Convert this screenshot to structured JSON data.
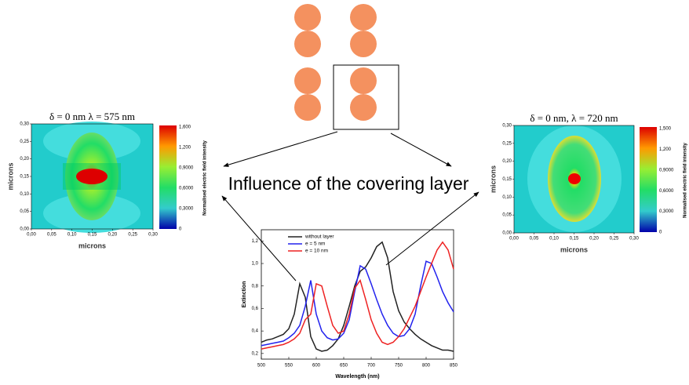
{
  "heading": "Influence of the covering layer",
  "left_map": {
    "title": "δ = 0 nm  λ = 575 nm",
    "xlabel": "microns",
    "ylabel": "microns",
    "colorbar_label": "Normalised electric field intensity",
    "lim": [
      0,
      0.3
    ],
    "ticks": [
      {
        "value": 0,
        "label": "0,00"
      },
      {
        "value": 0.05,
        "label": "0,05"
      },
      {
        "value": 0.1,
        "label": "0,10"
      },
      {
        "value": 0.15,
        "label": "0,15"
      },
      {
        "value": 0.2,
        "label": "0,20"
      },
      {
        "value": 0.25,
        "label": "0,25"
      },
      {
        "value": 0.3,
        "label": "0,30"
      }
    ],
    "colorbar_labels": [
      "1,600",
      "1,200",
      "0,9000",
      "0,6000",
      "0,3000",
      "0"
    ]
  },
  "right_map": {
    "title": "δ = 0 nm, λ = 720 nm",
    "xlabel": "microns",
    "ylabel": "microns",
    "colorbar_label": "Normalised electric field intensity",
    "lim": [
      0,
      0.3
    ],
    "ticks": [
      {
        "value": 0,
        "label": "0,00"
      },
      {
        "value": 0.05,
        "label": "0,05"
      },
      {
        "value": 0.1,
        "label": "0,10"
      },
      {
        "value": 0.15,
        "label": "0,15"
      },
      {
        "value": 0.2,
        "label": "0,20"
      },
      {
        "value": 0.25,
        "label": "0,25"
      },
      {
        "value": 0.3,
        "label": "0,30"
      }
    ],
    "colorbar_labels": [
      "1,500",
      "1,200",
      "0,9000",
      "0,6000",
      "0,3000",
      "0"
    ]
  },
  "chart_data": {
    "type": "line",
    "xlabel": "Wavelength (nm)",
    "ylabel": "Extinction",
    "x": [
      500,
      510,
      520,
      530,
      540,
      550,
      560,
      570,
      580,
      590,
      600,
      610,
      620,
      630,
      640,
      650,
      660,
      670,
      680,
      690,
      700,
      710,
      720,
      730,
      740,
      750,
      760,
      770,
      780,
      790,
      800,
      810,
      820,
      830,
      840,
      850
    ],
    "series": [
      {
        "name": "without layer",
        "color": "#222222",
        "values": [
          0.3,
          0.32,
          0.33,
          0.35,
          0.37,
          0.42,
          0.55,
          0.82,
          0.7,
          0.35,
          0.24,
          0.22,
          0.23,
          0.27,
          0.33,
          0.45,
          0.62,
          0.8,
          0.93,
          0.97,
          1.05,
          1.15,
          1.19,
          1.05,
          0.75,
          0.58,
          0.48,
          0.42,
          0.37,
          0.33,
          0.3,
          0.27,
          0.25,
          0.23,
          0.23,
          0.22
        ]
      },
      {
        "name": "e = 5 nm",
        "color": "#2222ee",
        "values": [
          0.27,
          0.28,
          0.29,
          0.3,
          0.31,
          0.34,
          0.38,
          0.45,
          0.62,
          0.85,
          0.55,
          0.4,
          0.34,
          0.32,
          0.33,
          0.38,
          0.5,
          0.75,
          0.98,
          0.95,
          0.82,
          0.68,
          0.55,
          0.45,
          0.38,
          0.35,
          0.36,
          0.42,
          0.55,
          0.8,
          1.02,
          1.0,
          0.88,
          0.75,
          0.65,
          0.57
        ]
      },
      {
        "name": "e = 10 nm",
        "color": "#ee2222",
        "values": [
          0.24,
          0.25,
          0.26,
          0.27,
          0.28,
          0.3,
          0.33,
          0.38,
          0.5,
          0.55,
          0.82,
          0.8,
          0.62,
          0.45,
          0.38,
          0.4,
          0.55,
          0.78,
          0.85,
          0.68,
          0.5,
          0.38,
          0.3,
          0.28,
          0.3,
          0.35,
          0.42,
          0.52,
          0.62,
          0.75,
          0.88,
          1.0,
          1.12,
          1.19,
          1.12,
          0.95
        ]
      }
    ],
    "xlim": [
      500,
      850
    ],
    "xticks": [
      500,
      550,
      600,
      650,
      700,
      750,
      800,
      850
    ],
    "ylim": [
      0.15,
      1.3
    ],
    "yticks": [
      {
        "value": 0.2,
        "label": "0,2"
      },
      {
        "value": 0.4,
        "label": "0,4"
      },
      {
        "value": 0.6,
        "label": "0,6"
      },
      {
        "value": 0.8,
        "label": "0,8"
      },
      {
        "value": 1.0,
        "label": "1,0"
      },
      {
        "value": 1.2,
        "label": "1,2"
      }
    ]
  }
}
